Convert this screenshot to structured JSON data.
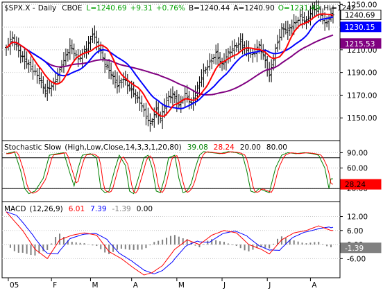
{
  "chart_data": {
    "type": "line",
    "x_axis": {
      "labels": [
        "05",
        "F",
        "M",
        "A",
        "M",
        "J",
        "J",
        "A"
      ],
      "label_days": [
        1,
        22,
        41,
        61,
        83,
        105,
        127,
        148
      ]
    },
    "price": {
      "header": {
        "symbol": "$SPX.X",
        "period": "Daily",
        "exchange": "CBOE",
        "last": "L=1240.69",
        "change": "+9.31",
        "change_pct": "+0.76%",
        "bid": "B=1240.44",
        "ask": "A=1240.90",
        "open": "O=1231.49",
        "high": "Hi=1242..."
      },
      "ylim": [
        1130,
        1252
      ],
      "yticks": [
        1150.0,
        1170.0,
        1190.0,
        1210.0,
        1230.0,
        1250.0
      ],
      "ytick_labels": [
        "1150.00",
        "1170.00",
        "1190.00",
        "1210.00",
        "1230.00",
        "1250.00"
      ],
      "tags": [
        {
          "value": 1240.69,
          "label": "1240.69",
          "bg": "#ffffff",
          "fg": "#000000"
        },
        {
          "value": 1230.15,
          "label": "1230.15",
          "bg": "#0000ff",
          "fg": "#ffffff"
        },
        {
          "value": 1215.53,
          "label": "1215.53",
          "bg": "#800080",
          "fg": "#ffffff"
        }
      ],
      "close_anchors": [
        [
          0,
          1212
        ],
        [
          3,
          1219
        ],
        [
          7,
          1205
        ],
        [
          11,
          1198
        ],
        [
          15,
          1188
        ],
        [
          19,
          1172
        ],
        [
          23,
          1180
        ],
        [
          27,
          1198
        ],
        [
          31,
          1212
        ],
        [
          35,
          1200
        ],
        [
          39,
          1212
        ],
        [
          42,
          1226
        ],
        [
          45,
          1212
        ],
        [
          48,
          1196
        ],
        [
          51,
          1188
        ],
        [
          54,
          1180
        ],
        [
          57,
          1186
        ],
        [
          60,
          1176
        ],
        [
          63,
          1168
        ],
        [
          66,
          1160
        ],
        [
          68,
          1152
        ],
        [
          70,
          1146
        ],
        [
          73,
          1158
        ],
        [
          75,
          1148
        ],
        [
          78,
          1165
        ],
        [
          81,
          1170
        ],
        [
          84,
          1162
        ],
        [
          87,
          1172
        ],
        [
          90,
          1162
        ],
        [
          93,
          1175
        ],
        [
          96,
          1190
        ],
        [
          99,
          1200
        ],
        [
          102,
          1208
        ],
        [
          105,
          1196
        ],
        [
          108,
          1205
        ],
        [
          111,
          1212
        ],
        [
          114,
          1218
        ],
        [
          117,
          1210
        ],
        [
          120,
          1205
        ],
        [
          123,
          1212
        ],
        [
          126,
          1200
        ],
        [
          128,
          1188
        ],
        [
          131,
          1212
        ],
        [
          134,
          1228
        ],
        [
          137,
          1226
        ],
        [
          140,
          1232
        ],
        [
          143,
          1240
        ],
        [
          146,
          1236
        ],
        [
          149,
          1246
        ],
        [
          152,
          1244
        ],
        [
          155,
          1232
        ],
        [
          158,
          1240.69
        ]
      ],
      "bar_range": 5,
      "ma_short": {
        "period": 10,
        "color": "#ff0000"
      },
      "ma_medium": {
        "period": 20,
        "color": "#0000ff"
      },
      "ma_long": {
        "period": 50,
        "color": "#800080"
      }
    },
    "stochastic": {
      "title": "Stochastic Slow",
      "params": "(High,Low,Close,14,3,3,1,20,80)",
      "k_value": "39.08",
      "d_value": "28.24",
      "levels": [
        "20.00",
        "80.00"
      ],
      "ylim": [
        0,
        100
      ],
      "yticks": [
        90,
        60,
        20
      ],
      "ytick_labels": [
        "90.00",
        "60.00",
        "20.00"
      ],
      "hlines": [
        80,
        20
      ],
      "tag": {
        "value": 28.24,
        "label": "28.24",
        "bg": "#ff0000",
        "fg": "#000000"
      },
      "k_color": "#008000",
      "d_color": "#ff0000",
      "k_anchors": [
        [
          0,
          88
        ],
        [
          4,
          92
        ],
        [
          7,
          55
        ],
        [
          9,
          20
        ],
        [
          11,
          10
        ],
        [
          14,
          15
        ],
        [
          18,
          40
        ],
        [
          21,
          85
        ],
        [
          25,
          88
        ],
        [
          28,
          90
        ],
        [
          31,
          50
        ],
        [
          33,
          25
        ],
        [
          35,
          60
        ],
        [
          37,
          85
        ],
        [
          41,
          88
        ],
        [
          44,
          80
        ],
        [
          46,
          20
        ],
        [
          48,
          12
        ],
        [
          50,
          15
        ],
        [
          53,
          60
        ],
        [
          55,
          85
        ],
        [
          58,
          65
        ],
        [
          60,
          15
        ],
        [
          62,
          10
        ],
        [
          65,
          50
        ],
        [
          67,
          80
        ],
        [
          69,
          85
        ],
        [
          71,
          60
        ],
        [
          73,
          15
        ],
        [
          75,
          12
        ],
        [
          77,
          40
        ],
        [
          79,
          80
        ],
        [
          82,
          85
        ],
        [
          84,
          40
        ],
        [
          86,
          12
        ],
        [
          88,
          15
        ],
        [
          90,
          30
        ],
        [
          92,
          60
        ],
        [
          94,
          85
        ],
        [
          96,
          92
        ],
        [
          100,
          90
        ],
        [
          104,
          88
        ],
        [
          108,
          92
        ],
        [
          112,
          90
        ],
        [
          115,
          85
        ],
        [
          117,
          55
        ],
        [
          119,
          15
        ],
        [
          121,
          12
        ],
        [
          123,
          20
        ],
        [
          126,
          15
        ],
        [
          128,
          12
        ],
        [
          131,
          60
        ],
        [
          134,
          85
        ],
        [
          137,
          90
        ],
        [
          141,
          88
        ],
        [
          145,
          90
        ],
        [
          149,
          88
        ],
        [
          152,
          85
        ],
        [
          155,
          60
        ],
        [
          157,
          20
        ],
        [
          158,
          39.08
        ]
      ],
      "d_lag": 1.5
    },
    "macd": {
      "title": "MACD",
      "params": "(12,26,9)",
      "macd_value": "6.01",
      "signal_value": "7.39",
      "hist_value": "-1.39",
      "zero_value": "0.00",
      "ylim": [
        -13,
        16
      ],
      "yticks": [
        12.0,
        6.0,
        0.0,
        -6.0
      ],
      "ytick_labels": [
        "12.00",
        "6.00",
        "0.00",
        "-6.00"
      ],
      "tag": {
        "value": -1.39,
        "label": "-1.39",
        "bg": "#808080",
        "fg": "#ffffff"
      },
      "macd_color": "#ff0000",
      "signal_color": "#0000ff",
      "hist_color": "#808080",
      "macd_anchors": [
        [
          0,
          14
        ],
        [
          8,
          6
        ],
        [
          14,
          -2
        ],
        [
          20,
          -6
        ],
        [
          26,
          2
        ],
        [
          32,
          4
        ],
        [
          38,
          5
        ],
        [
          44,
          4
        ],
        [
          50,
          -3
        ],
        [
          56,
          -6
        ],
        [
          62,
          -10
        ],
        [
          67,
          -13
        ],
        [
          71,
          -12
        ],
        [
          76,
          -9
        ],
        [
          82,
          -2
        ],
        [
          88,
          2
        ],
        [
          94,
          0
        ],
        [
          100,
          4
        ],
        [
          106,
          6
        ],
        [
          112,
          5
        ],
        [
          118,
          0
        ],
        [
          124,
          -2
        ],
        [
          128,
          -4
        ],
        [
          134,
          2
        ],
        [
          140,
          5
        ],
        [
          146,
          6
        ],
        [
          152,
          8
        ],
        [
          158,
          6.01
        ]
      ],
      "signal_lag": 5,
      "signal_damp": 0.7
    }
  }
}
